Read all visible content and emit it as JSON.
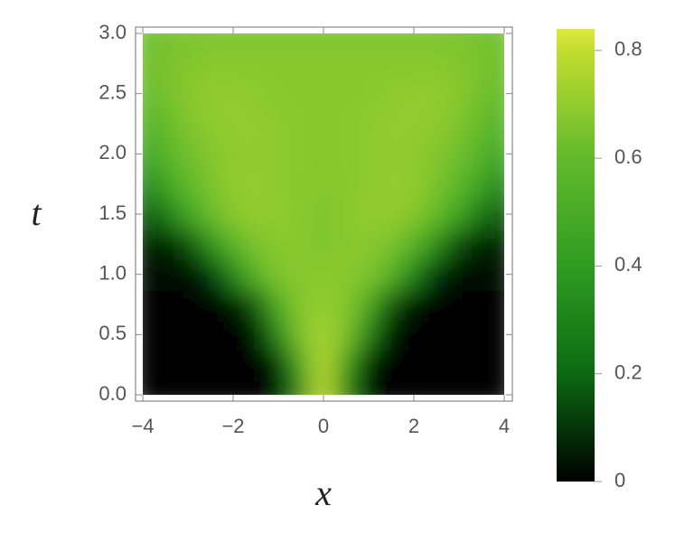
{
  "chart_data": {
    "type": "heatmap",
    "x_label": "x",
    "y_label": "t",
    "x": [
      -4,
      -3.5,
      -3,
      -2.5,
      -2,
      -1.5,
      -1,
      -0.5,
      0,
      0.5,
      1,
      1.5,
      2,
      2.5,
      3,
      3.5,
      4
    ],
    "y": [
      0,
      0.25,
      0.5,
      0.75,
      1,
      1.25,
      1.5,
      1.75,
      2,
      2.25,
      2.5,
      2.75,
      3
    ],
    "z": [
      [
        0,
        0,
        0,
        0,
        0,
        0,
        0.02,
        0.3,
        0.8,
        0.3,
        0.02,
        0,
        0,
        0,
        0,
        0,
        0
      ],
      [
        0,
        0,
        0,
        0,
        0,
        0,
        0.05,
        0.45,
        0.78,
        0.45,
        0.05,
        0,
        0,
        0,
        0,
        0,
        0
      ],
      [
        0,
        0,
        0,
        0,
        0,
        0.02,
        0.3,
        0.65,
        0.75,
        0.65,
        0.3,
        0.02,
        0,
        0,
        0,
        0,
        0
      ],
      [
        0,
        0,
        0,
        0,
        0.02,
        0.15,
        0.5,
        0.68,
        0.7,
        0.68,
        0.5,
        0.15,
        0.02,
        0,
        0,
        0,
        0
      ],
      [
        0.02,
        0.02,
        0.03,
        0.08,
        0.3,
        0.55,
        0.66,
        0.68,
        0.68,
        0.68,
        0.66,
        0.55,
        0.3,
        0.08,
        0.03,
        0.02,
        0.02
      ],
      [
        0.05,
        0.06,
        0.12,
        0.35,
        0.55,
        0.65,
        0.68,
        0.68,
        0.66,
        0.68,
        0.68,
        0.65,
        0.55,
        0.35,
        0.12,
        0.06,
        0.05
      ],
      [
        0.15,
        0.25,
        0.45,
        0.6,
        0.68,
        0.7,
        0.7,
        0.68,
        0.66,
        0.68,
        0.7,
        0.7,
        0.68,
        0.6,
        0.45,
        0.25,
        0.15
      ],
      [
        0.3,
        0.45,
        0.58,
        0.65,
        0.7,
        0.7,
        0.69,
        0.68,
        0.67,
        0.68,
        0.69,
        0.7,
        0.7,
        0.65,
        0.58,
        0.45,
        0.3
      ],
      [
        0.45,
        0.55,
        0.63,
        0.67,
        0.69,
        0.7,
        0.69,
        0.68,
        0.68,
        0.68,
        0.69,
        0.7,
        0.69,
        0.67,
        0.63,
        0.55,
        0.45
      ],
      [
        0.55,
        0.6,
        0.66,
        0.69,
        0.7,
        0.7,
        0.69,
        0.68,
        0.68,
        0.68,
        0.69,
        0.7,
        0.7,
        0.69,
        0.66,
        0.6,
        0.55
      ],
      [
        0.6,
        0.64,
        0.68,
        0.7,
        0.7,
        0.69,
        0.68,
        0.68,
        0.68,
        0.68,
        0.68,
        0.69,
        0.7,
        0.7,
        0.68,
        0.64,
        0.6
      ],
      [
        0.62,
        0.65,
        0.67,
        0.68,
        0.68,
        0.68,
        0.68,
        0.68,
        0.68,
        0.68,
        0.68,
        0.68,
        0.68,
        0.68,
        0.67,
        0.65,
        0.62
      ],
      [
        0.63,
        0.64,
        0.65,
        0.66,
        0.66,
        0.66,
        0.66,
        0.66,
        0.66,
        0.66,
        0.66,
        0.66,
        0.66,
        0.66,
        0.65,
        0.64,
        0.63
      ]
    ],
    "xlim": [
      -4,
      4
    ],
    "xticks": [
      {
        "value": -4,
        "label": "−4"
      },
      {
        "value": -2,
        "label": "−2"
      },
      0,
      2,
      4
    ],
    "ylim": [
      0,
      3
    ],
    "yticks": [
      {
        "value": 0,
        "label": "0.0"
      },
      0.5,
      {
        "value": 1,
        "label": "1.0"
      },
      1.5,
      {
        "value": 2,
        "label": "2.0"
      },
      2.5,
      {
        "value": 3,
        "label": "3.0"
      }
    ],
    "zlim": [
      0,
      0.84
    ],
    "zticks": [
      0,
      0.2,
      0.4,
      0.6,
      0.8
    ],
    "colorscale": [
      [
        0,
        "#000000"
      ],
      [
        0.2,
        "#0b6a12"
      ],
      [
        0.4,
        "#2f9c22"
      ],
      [
        0.6,
        "#62ba2c"
      ],
      [
        0.8,
        "#c2dd30"
      ],
      [
        0.84,
        "#dfe83c"
      ]
    ]
  }
}
